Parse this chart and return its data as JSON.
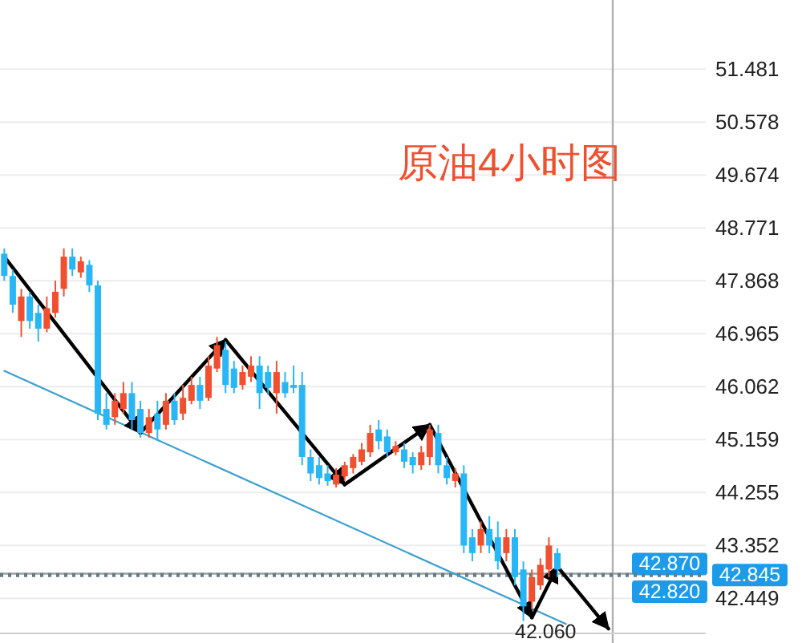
{
  "chart_data": {
    "type": "candlestick",
    "title": "原油4小时图",
    "categories": [
      null,
      null,
      null,
      null,
      null,
      null,
      null,
      null,
      null,
      null,
      null,
      null,
      null,
      null,
      null,
      null,
      null,
      null,
      null,
      null,
      null,
      null,
      null,
      null,
      null,
      null,
      null,
      null,
      null,
      null,
      null,
      null,
      null,
      null,
      null,
      null,
      null,
      null,
      null,
      null,
      null,
      null,
      null,
      null,
      null,
      null,
      null,
      null,
      null,
      null,
      null,
      null,
      null,
      null,
      null,
      null,
      null,
      null,
      null,
      null,
      null,
      null,
      null,
      null,
      null,
      null,
      null,
      null,
      null,
      null,
      null,
      null
    ],
    "ohlc": [
      [
        48.33,
        48.42,
        47.87,
        47.95
      ],
      [
        47.95,
        48.06,
        47.32,
        47.46
      ],
      [
        47.18,
        47.73,
        46.91,
        47.6
      ],
      [
        47.6,
        47.68,
        47.05,
        47.18
      ],
      [
        47.32,
        47.46,
        46.83,
        47.05
      ],
      [
        47.05,
        47.6,
        46.99,
        47.4
      ],
      [
        47.32,
        47.87,
        47.24,
        47.68
      ],
      [
        47.73,
        48.42,
        47.6,
        48.28
      ],
      [
        48.28,
        48.42,
        47.95,
        48.06
      ],
      [
        48.01,
        48.28,
        47.92,
        48.2
      ],
      [
        48.14,
        48.22,
        47.68,
        47.79
      ],
      [
        47.79,
        47.87,
        45.49,
        45.6
      ],
      [
        45.68,
        45.95,
        45.33,
        45.41
      ],
      [
        45.54,
        45.95,
        45.41,
        45.82
      ],
      [
        45.68,
        46.14,
        45.6,
        45.95
      ],
      [
        45.95,
        46.14,
        45.33,
        45.49
      ],
      [
        45.68,
        45.82,
        45.19,
        45.27
      ],
      [
        45.27,
        45.68,
        45.19,
        45.54
      ],
      [
        45.6,
        45.82,
        45.13,
        45.33
      ],
      [
        45.41,
        45.95,
        45.33,
        45.82
      ],
      [
        45.82,
        45.95,
        45.41,
        45.49
      ],
      [
        45.6,
        46.09,
        45.49,
        45.87
      ],
      [
        45.82,
        46.23,
        45.76,
        46.09
      ],
      [
        46.09,
        46.23,
        45.68,
        45.82
      ],
      [
        45.87,
        46.58,
        45.82,
        46.42
      ],
      [
        46.37,
        46.91,
        46.31,
        46.77
      ],
      [
        46.69,
        46.83,
        45.95,
        46.09
      ],
      [
        46.37,
        46.5,
        45.95,
        46.04
      ],
      [
        46.09,
        46.42,
        46.01,
        46.31
      ],
      [
        46.23,
        46.58,
        46.14,
        46.42
      ],
      [
        46.42,
        46.58,
        45.68,
        45.95
      ],
      [
        46.31,
        46.42,
        45.93,
        46.04
      ],
      [
        45.95,
        46.5,
        45.6,
        46.31
      ],
      [
        46.14,
        46.31,
        45.87,
        45.95
      ],
      [
        46.09,
        46.42,
        45.95,
        46.04
      ],
      [
        46.09,
        46.31,
        44.72,
        44.86
      ],
      [
        44.86,
        44.99,
        44.45,
        44.58
      ],
      [
        44.72,
        44.86,
        44.39,
        44.5
      ],
      [
        44.58,
        44.72,
        44.37,
        44.45
      ],
      [
        44.39,
        44.67,
        44.34,
        44.56
      ],
      [
        44.53,
        44.78,
        44.45,
        44.72
      ],
      [
        44.67,
        44.91,
        44.58,
        44.86
      ],
      [
        44.78,
        45.1,
        44.72,
        44.99
      ],
      [
        44.94,
        45.41,
        44.86,
        45.27
      ],
      [
        45.33,
        45.49,
        44.99,
        45.13
      ],
      [
        45.21,
        45.33,
        44.86,
        44.94
      ],
      [
        44.94,
        45.13,
        44.89,
        45.05
      ],
      [
        44.99,
        45.1,
        44.67,
        44.78
      ],
      [
        44.86,
        44.94,
        44.58,
        44.72
      ],
      [
        44.72,
        45.05,
        44.64,
        44.94
      ],
      [
        44.86,
        45.41,
        44.72,
        45.33
      ],
      [
        45.27,
        45.41,
        44.58,
        44.72
      ],
      [
        44.72,
        44.86,
        44.39,
        44.5
      ],
      [
        44.45,
        44.67,
        44.34,
        44.58
      ],
      [
        44.58,
        44.72,
        43.22,
        43.35
      ],
      [
        43.49,
        43.63,
        43.08,
        43.22
      ],
      [
        43.35,
        43.76,
        43.22,
        43.63
      ],
      [
        43.63,
        43.85,
        43.22,
        43.35
      ],
      [
        43.49,
        43.76,
        42.94,
        43.08
      ],
      [
        43.22,
        43.63,
        43.08,
        43.49
      ],
      [
        43.49,
        43.63,
        42.67,
        42.81
      ],
      [
        42.94,
        43.08,
        42.06,
        42.31
      ],
      [
        42.39,
        42.94,
        42.26,
        42.81
      ],
      [
        42.67,
        43.13,
        42.59,
        43.02
      ],
      [
        42.94,
        43.49,
        42.81,
        43.35
      ],
      [
        43.22,
        43.3,
        42.81,
        42.94
      ],
      null,
      null,
      null,
      null,
      null,
      null
    ],
    "colors": [
      "#29b6f6",
      "#29b6f6",
      "#f0502f",
      "#29b6f6",
      "#29b6f6",
      "#f0502f",
      "#f0502f",
      "#f0502f",
      "#29b6f6",
      "#f0502f",
      "#29b6f6",
      "#29b6f6",
      "#29b6f6",
      "#f0502f",
      "#f0502f",
      "#29b6f6",
      "#29b6f6",
      "#f0502f",
      "#29b6f6",
      "#f0502f",
      "#29b6f6",
      "#f0502f",
      "#f0502f",
      "#29b6f6",
      "#f0502f",
      "#f0502f",
      "#29b6f6",
      "#29b6f6",
      "#f0502f",
      "#f0502f",
      "#29b6f6",
      "#29b6f6",
      "#f0502f",
      "#29b6f6",
      "#29b6f6",
      "#29b6f6",
      "#29b6f6",
      "#29b6f6",
      "#29b6f6",
      "#f0502f",
      "#f0502f",
      "#f0502f",
      "#f0502f",
      "#f0502f",
      "#29b6f6",
      "#29b6f6",
      "#f0502f",
      "#29b6f6",
      "#29b6f6",
      "#f0502f",
      "#f0502f",
      "#29b6f6",
      "#29b6f6",
      "#f0502f",
      "#29b6f6",
      "#29b6f6",
      "#f0502f",
      "#29b6f6",
      "#29b6f6",
      "#f0502f",
      "#29b6f6",
      "#29b6f6",
      "#f0502f",
      "#f0502f",
      "#f0502f",
      "#29b6f6",
      null,
      null,
      null,
      null,
      null,
      null
    ],
    "series": [
      {
        "type": "line",
        "color": "#3a9fd0",
        "marker": "none",
        "values": [
          46.33,
          null,
          null,
          null,
          null,
          null,
          null,
          null,
          null,
          null,
          null,
          null,
          null,
          null,
          null,
          null,
          null,
          null,
          null,
          null,
          null,
          null,
          null,
          null,
          null,
          null,
          null,
          null,
          null,
          null,
          null,
          null,
          null,
          null,
          null,
          null,
          null,
          null,
          null,
          null,
          null,
          null,
          null,
          null,
          null,
          null,
          null,
          null,
          null,
          null,
          null,
          null,
          null,
          null,
          null,
          null,
          null,
          null,
          null,
          null,
          null,
          null,
          null,
          null,
          null,
          null,
          42.01,
          null,
          null,
          null,
          null,
          null
        ]
      },
      {
        "type": "line",
        "color": "#000000",
        "values": [
          48.28,
          null,
          null,
          null,
          null,
          null,
          null,
          null,
          null,
          null,
          null,
          null,
          null,
          null,
          null,
          null,
          45.27,
          null,
          null,
          null,
          null,
          null,
          null,
          null,
          null,
          null,
          null,
          null,
          null,
          null,
          null,
          null,
          null,
          null,
          null,
          null,
          null,
          null,
          null,
          null,
          null,
          null,
          null,
          null,
          null,
          null,
          null,
          null,
          null,
          null,
          null,
          null,
          null,
          null,
          null,
          null,
          null,
          null,
          null,
          null,
          null,
          null,
          null,
          null,
          null,
          null,
          null,
          null,
          null,
          null,
          null,
          null
        ]
      },
      {
        "type": "line",
        "color": "#000000",
        "values": [
          null,
          null,
          null,
          null,
          null,
          null,
          null,
          null,
          null,
          null,
          null,
          null,
          null,
          null,
          null,
          null,
          45.27,
          null,
          null,
          null,
          null,
          null,
          null,
          null,
          null,
          null,
          46.86,
          null,
          null,
          null,
          null,
          null,
          null,
          null,
          null,
          null,
          null,
          null,
          null,
          null,
          null,
          null,
          null,
          null,
          null,
          null,
          null,
          null,
          null,
          null,
          null,
          null,
          null,
          null,
          null,
          null,
          null,
          null,
          null,
          null,
          null,
          null,
          null,
          null,
          null,
          null,
          null,
          null,
          null,
          null,
          null,
          null
        ]
      },
      {
        "type": "line",
        "color": "#000000",
        "values": [
          null,
          null,
          null,
          null,
          null,
          null,
          null,
          null,
          null,
          null,
          null,
          null,
          null,
          null,
          null,
          null,
          null,
          null,
          null,
          null,
          null,
          null,
          null,
          null,
          null,
          null,
          46.86,
          null,
          null,
          null,
          null,
          null,
          null,
          null,
          null,
          null,
          null,
          null,
          null,
          null,
          44.39,
          null,
          null,
          null,
          null,
          null,
          null,
          null,
          null,
          null,
          null,
          null,
          null,
          null,
          null,
          null,
          null,
          null,
          null,
          null,
          null,
          null,
          null,
          null,
          null,
          null,
          null,
          null,
          null,
          null,
          null,
          null
        ]
      },
      {
        "type": "line",
        "color": "#000000",
        "values": [
          null,
          null,
          null,
          null,
          null,
          null,
          null,
          null,
          null,
          null,
          null,
          null,
          null,
          null,
          null,
          null,
          null,
          null,
          null,
          null,
          null,
          null,
          null,
          null,
          null,
          null,
          null,
          null,
          null,
          null,
          null,
          null,
          null,
          null,
          null,
          null,
          null,
          null,
          null,
          null,
          44.39,
          null,
          null,
          null,
          null,
          null,
          null,
          null,
          null,
          null,
          45.41,
          null,
          null,
          null,
          null,
          null,
          null,
          null,
          null,
          null,
          null,
          null,
          null,
          null,
          null,
          null,
          null,
          null,
          null,
          null,
          null,
          null
        ]
      },
      {
        "type": "line",
        "color": "#000000",
        "values": [
          null,
          null,
          null,
          null,
          null,
          null,
          null,
          null,
          null,
          null,
          null,
          null,
          null,
          null,
          null,
          null,
          null,
          null,
          null,
          null,
          null,
          null,
          null,
          null,
          null,
          null,
          null,
          null,
          null,
          null,
          null,
          null,
          null,
          null,
          null,
          null,
          null,
          null,
          null,
          null,
          null,
          null,
          null,
          null,
          null,
          null,
          null,
          null,
          null,
          null,
          45.41,
          null,
          null,
          null,
          null,
          null,
          null,
          null,
          null,
          null,
          null,
          null,
          42.12,
          null,
          null,
          null,
          null,
          null,
          null,
          null,
          null,
          null
        ]
      },
      {
        "type": "line",
        "color": "#000000",
        "values": [
          null,
          null,
          null,
          null,
          null,
          null,
          null,
          null,
          null,
          null,
          null,
          null,
          null,
          null,
          null,
          null,
          null,
          null,
          null,
          null,
          null,
          null,
          null,
          null,
          null,
          null,
          null,
          null,
          null,
          null,
          null,
          null,
          null,
          null,
          null,
          null,
          null,
          null,
          null,
          null,
          null,
          null,
          null,
          null,
          null,
          null,
          null,
          null,
          null,
          null,
          null,
          null,
          null,
          null,
          null,
          null,
          null,
          null,
          null,
          null,
          null,
          null,
          42.12,
          null,
          null,
          42.99,
          null,
          null,
          null,
          null,
          null,
          null
        ]
      },
      {
        "type": "line",
        "color": "#000000",
        "values": [
          null,
          null,
          null,
          null,
          null,
          null,
          null,
          null,
          null,
          null,
          null,
          null,
          null,
          null,
          null,
          null,
          null,
          null,
          null,
          null,
          null,
          null,
          null,
          null,
          null,
          null,
          null,
          null,
          null,
          null,
          null,
          null,
          null,
          null,
          null,
          null,
          null,
          null,
          null,
          null,
          null,
          null,
          null,
          null,
          null,
          null,
          null,
          null,
          null,
          null,
          null,
          null,
          null,
          null,
          null,
          null,
          null,
          null,
          null,
          null,
          null,
          null,
          null,
          null,
          null,
          42.99,
          null,
          null,
          null,
          null,
          null,
          41.93
        ]
      }
    ],
    "ylim": [
      41.85,
      52.66
    ],
    "yticks": [
      42.449,
      43.352,
      44.255,
      45.159,
      46.062,
      46.965,
      47.868,
      48.771,
      49.674,
      50.578,
      51.481
    ],
    "tick_labels": "y",
    "grid": "y",
    "ref_lines": [
      {
        "axis": "y",
        "value": 42.87,
        "label": "42.870",
        "color": "#9e9e9e",
        "line_style": "solid"
      },
      {
        "axis": "y",
        "value": 42.845,
        "label": "42.845",
        "color": "#607d8b",
        "line_style": "dotted"
      }
    ],
    "annotations": [
      "42.060",
      "42.820"
    ]
  }
}
